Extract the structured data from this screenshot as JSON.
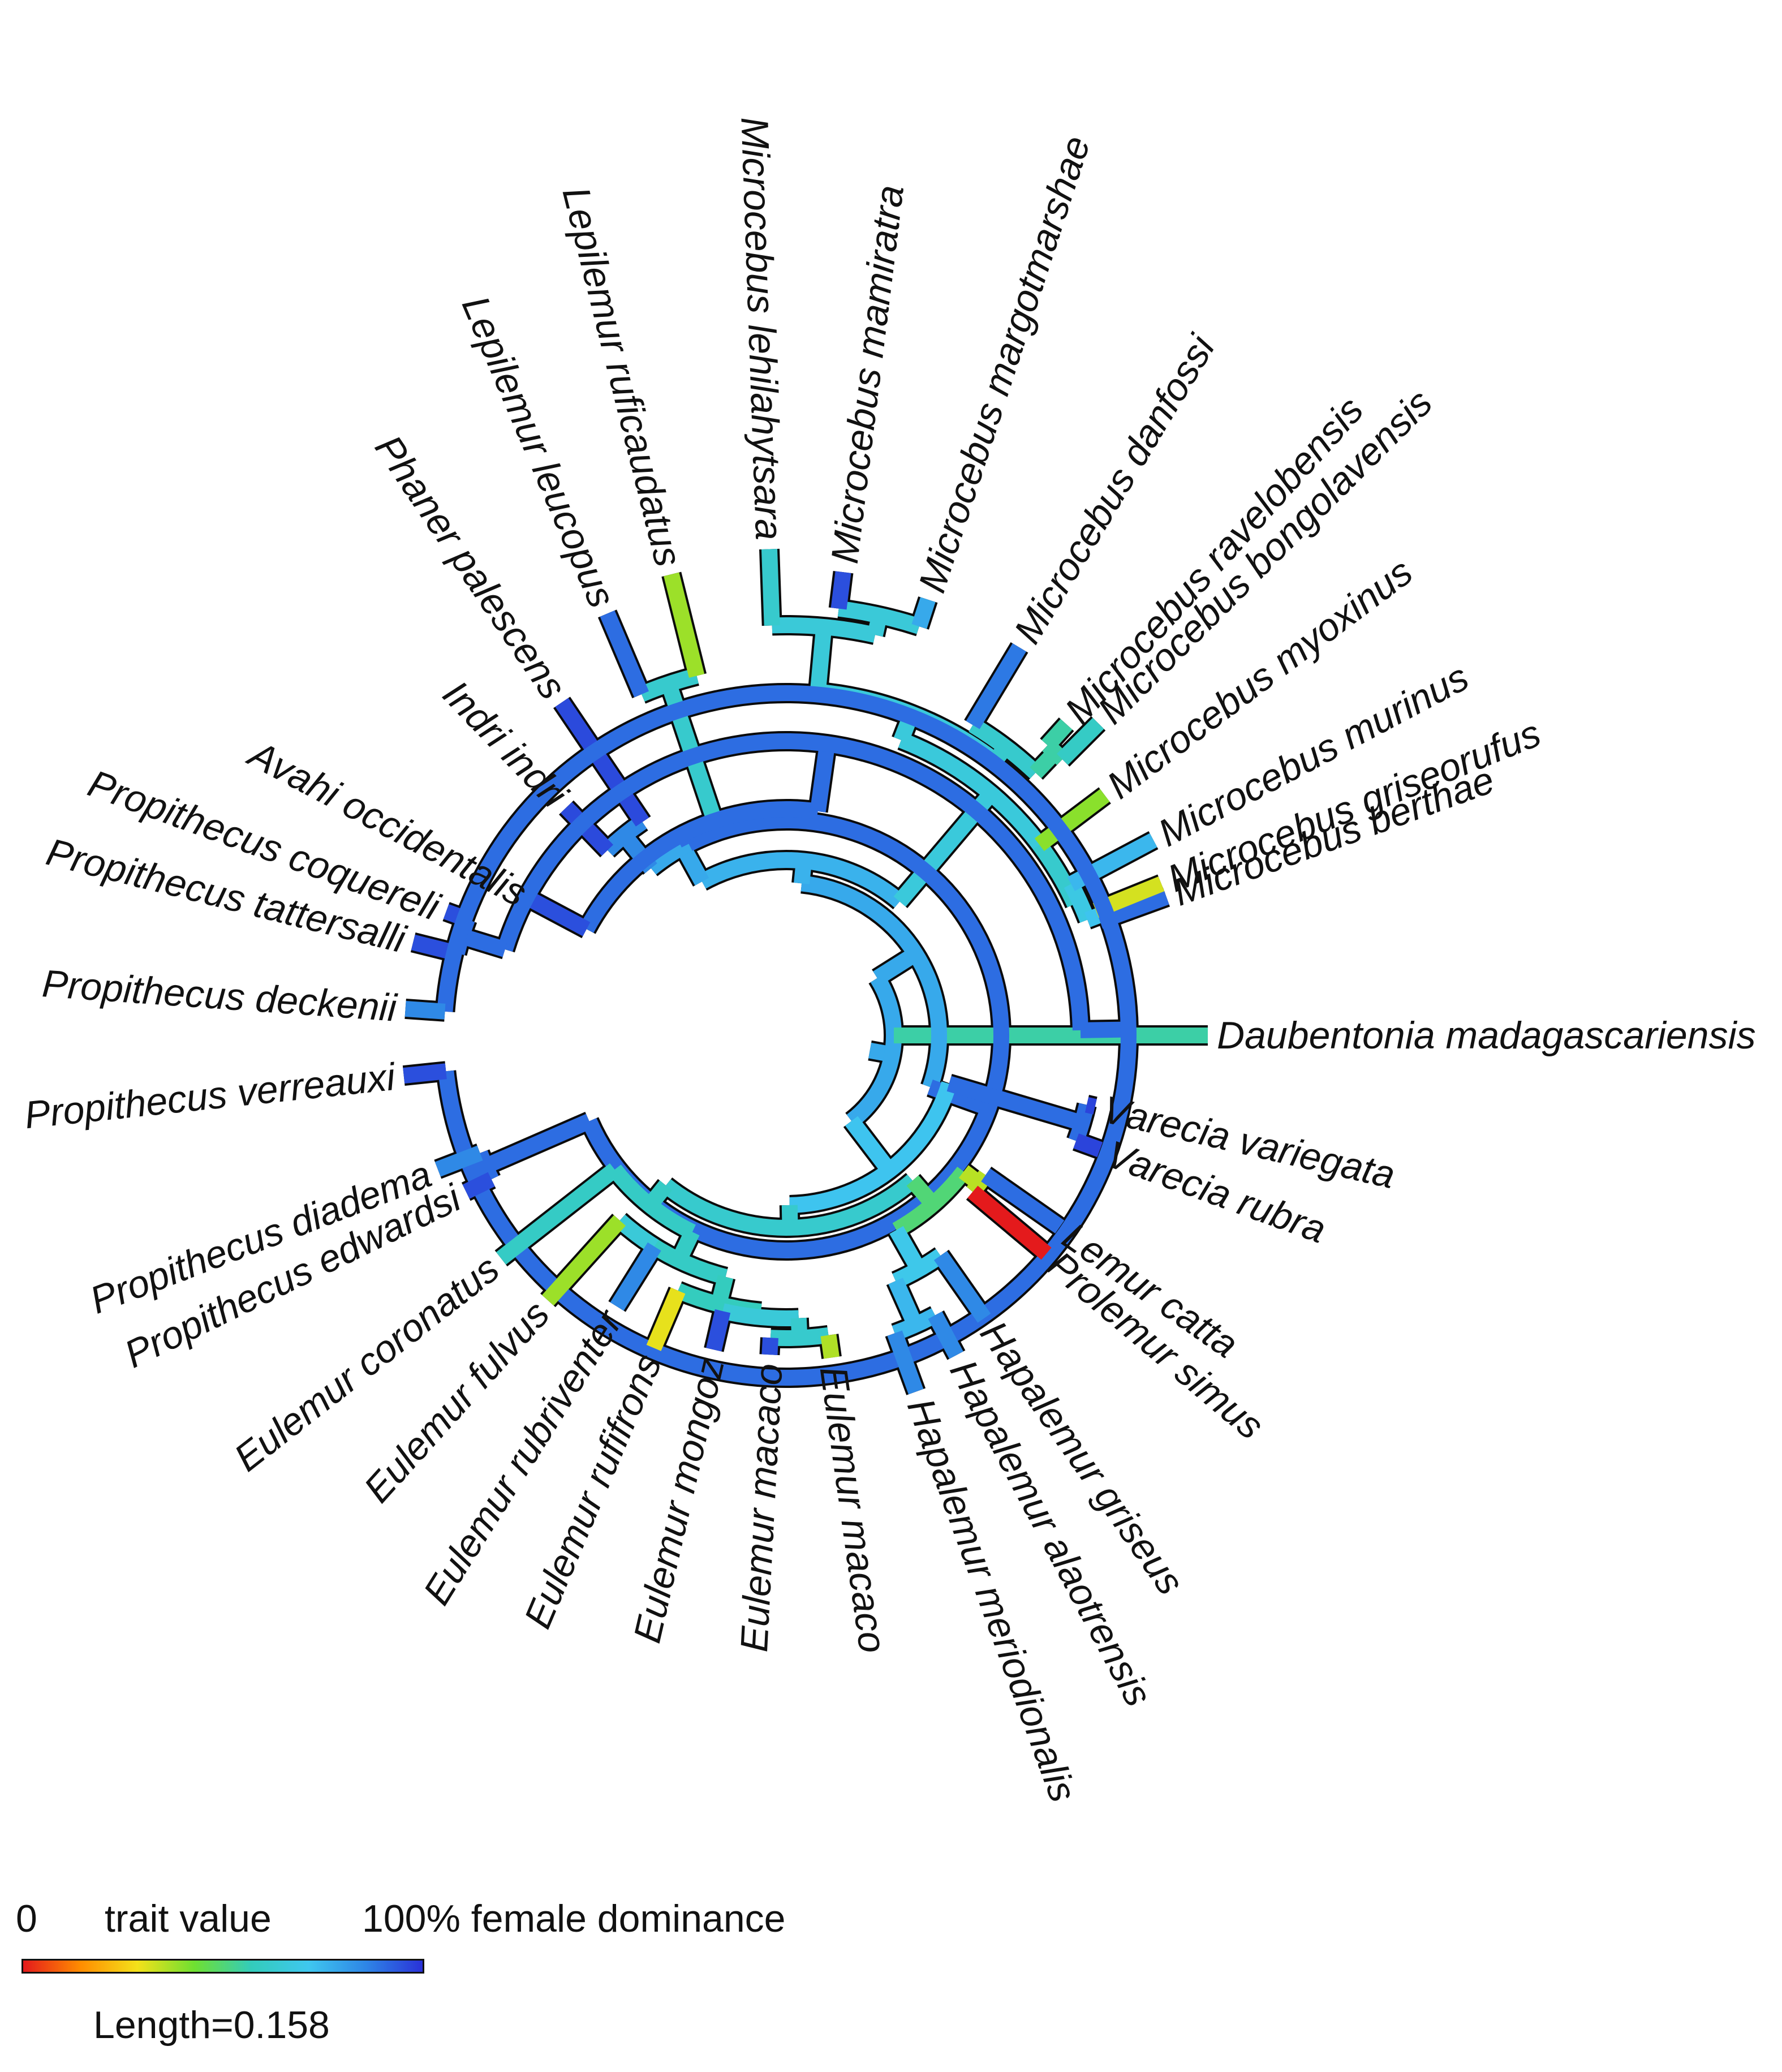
{
  "tree": {
    "tips": [
      {
        "name": "Daubentonia madagascariensis",
        "trait": 0.55
      },
      {
        "name": "Microcebus berthae",
        "trait": 0.9
      },
      {
        "name": "Microcebus griseorufus",
        "trait": 0.32
      },
      {
        "name": "Microcebus murinus",
        "trait": 0.75
      },
      {
        "name": "Microcebus myoxinus",
        "trait": 0.4
      },
      {
        "name": "Microcebus bongolavensis",
        "trait": 0.6
      },
      {
        "name": "Microcebus ravelobensis",
        "trait": 0.55
      },
      {
        "name": "Microcebus danfossi",
        "trait": 0.88
      },
      {
        "name": "Microcebus margotmarshae",
        "trait": 0.78
      },
      {
        "name": "Microcebus mamiratra",
        "trait": 0.95
      },
      {
        "name": "Microcebus lehilahytsara",
        "trait": 0.62
      },
      {
        "name": "Lepilemur ruficaudatus",
        "trait": 0.38
      },
      {
        "name": "Lepilemur leucopus",
        "trait": 0.9
      },
      {
        "name": "Phaner palescens",
        "trait": 0.96
      },
      {
        "name": "Indri indri",
        "trait": 0.96
      },
      {
        "name": "Avahi occidentalis",
        "trait": 0.95
      },
      {
        "name": "Propithecus coquereli",
        "trait": 0.95
      },
      {
        "name": "Propithecus tattersalli",
        "trait": 0.95
      },
      {
        "name": "Propithecus deckenii",
        "trait": 0.85
      },
      {
        "name": "Propithecus verreauxi",
        "trait": 0.95
      },
      {
        "name": "Propithecus diadema",
        "trait": 0.85
      },
      {
        "name": "Propithecus edwardsi",
        "trait": 0.95
      },
      {
        "name": "Eulemur coronatus",
        "trait": 0.6
      },
      {
        "name": "Eulemur fulvus",
        "trait": 0.38
      },
      {
        "name": "Eulemur rubriventer",
        "trait": 0.85
      },
      {
        "name": "Eulemur rufifrons",
        "trait": 0.3
      },
      {
        "name": "Eulemur mongoz",
        "trait": 0.95
      },
      {
        "name": "Eulemur macaco",
        "trait": 0.95
      },
      {
        "name": "Eulemur macaco",
        "trait": 0.36
      },
      {
        "name": "Hapalemur meriodionalis",
        "trait": 0.85
      },
      {
        "name": "Hapalemur alaotrensis",
        "trait": 0.85
      },
      {
        "name": "Hapalemur griseus",
        "trait": 0.85
      },
      {
        "name": "Prolemur simus",
        "trait": 0.0
      },
      {
        "name": "Lemur catta",
        "trait": 0.9
      },
      {
        "name": "Varecia rubra",
        "trait": 0.97
      },
      {
        "name": "Varecia variegata",
        "trait": 0.97
      }
    ]
  },
  "legend": {
    "min_label": "0",
    "title": "trait value",
    "max_label": "100% female dominance",
    "scale_label": "Length=0.158",
    "colors": [
      "#e41a1c",
      "#ff8c00",
      "#f4e11a",
      "#6fe031",
      "#33ccbb",
      "#3fc7ef",
      "#2e86e6",
      "#2a32d8"
    ]
  }
}
